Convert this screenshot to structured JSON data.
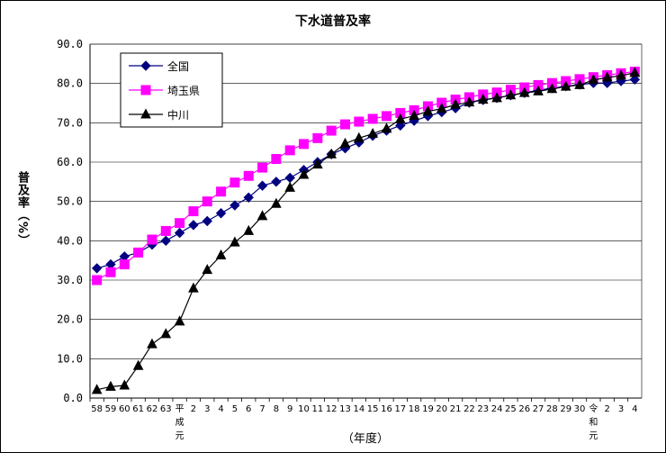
{
  "chart_data": {
    "type": "line",
    "title": "下水道普及率",
    "ylabel": "普及率（%）",
    "xlabel": "（年度）",
    "ylim": [
      0,
      90
    ],
    "yticks": [
      "0.0",
      "10.0",
      "20.0",
      "30.0",
      "40.0",
      "50.0",
      "60.0",
      "70.0",
      "80.0",
      "90.0"
    ],
    "grid": "horizontal",
    "legend": "top-left",
    "categories": [
      "58",
      "59",
      "60",
      "61",
      "62",
      "63",
      "平成元",
      "2",
      "3",
      "4",
      "5",
      "6",
      "7",
      "8",
      "9",
      "10",
      "11",
      "12",
      "13",
      "14",
      "15",
      "16",
      "17",
      "18",
      "19",
      "20",
      "21",
      "22",
      "23",
      "24",
      "25",
      "26",
      "27",
      "28",
      "29",
      "30",
      "令和元",
      "2",
      "3",
      "4"
    ],
    "series": [
      {
        "name": "全国",
        "color": "#000080",
        "marker": "diamond",
        "values": [
          33,
          34,
          36,
          37,
          39,
          40,
          42,
          44,
          45,
          47,
          49,
          51,
          54,
          55,
          56,
          58,
          60,
          62,
          63.5,
          65,
          66.7,
          68,
          69.3,
          70.5,
          71.7,
          72.7,
          73.7,
          75.1,
          75.8,
          76.3,
          77,
          77.6,
          78.3,
          78.8,
          79.3,
          79.7,
          80.1,
          80.1,
          80.6,
          81
        ]
      },
      {
        "name": "埼玉県",
        "color": "#FF00FF",
        "marker": "square",
        "values": [
          30,
          32,
          34,
          37,
          40.3,
          42.5,
          44.5,
          47.5,
          50,
          52.5,
          54.8,
          56.5,
          58.6,
          60.8,
          63,
          64.6,
          66.1,
          68,
          69.6,
          70.3,
          71,
          71.7,
          72.5,
          73.2,
          74.2,
          75.1,
          75.9,
          76.5,
          77.2,
          77.7,
          78.4,
          79,
          79.6,
          80.1,
          80.6,
          81.1,
          81.6,
          82.1,
          82.6,
          83
        ]
      },
      {
        "name": "中川",
        "color": "#000000",
        "marker": "triangle",
        "values": [
          2.1,
          2.9,
          3.2,
          8.2,
          13.7,
          16.3,
          19.5,
          27.9,
          32.6,
          36.3,
          39.6,
          42.5,
          46.3,
          49.4,
          53.5,
          56.8,
          59.4,
          62,
          64.7,
          66.1,
          67.2,
          68.5,
          70.9,
          71.8,
          72.9,
          73.6,
          74.6,
          75.2,
          75.9,
          76.3,
          77,
          77.6,
          78,
          78.6,
          79.2,
          79.6,
          80.9,
          81.5,
          82,
          82.7
        ]
      }
    ]
  }
}
